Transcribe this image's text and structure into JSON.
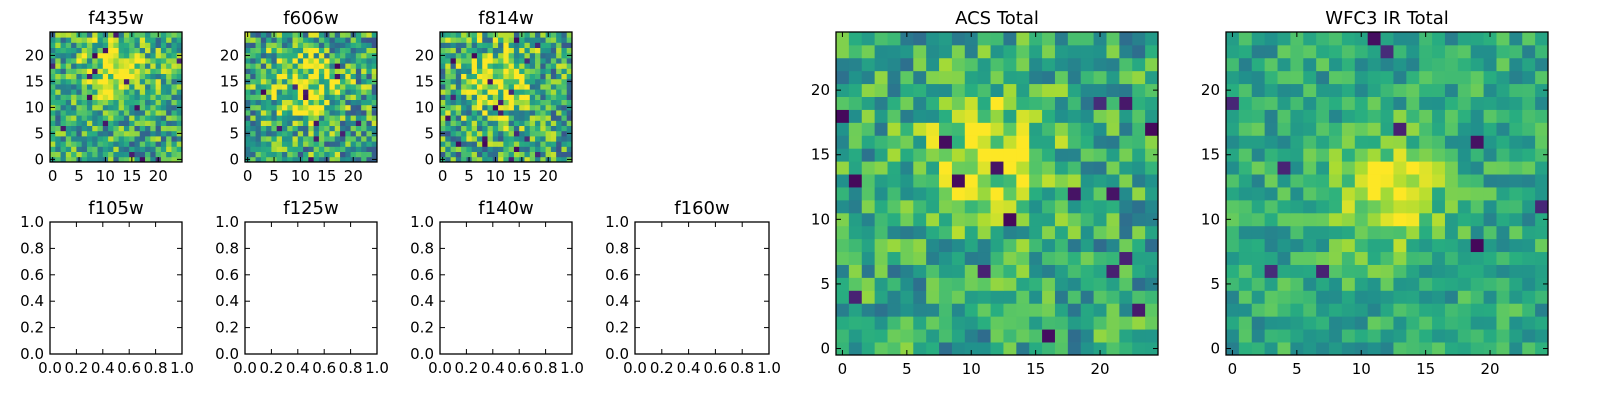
{
  "chart_data": [
    {
      "type": "heatmap",
      "title": "f435w",
      "x_ticks": [
        "0",
        "5",
        "10",
        "15",
        "20"
      ],
      "y_ticks": [
        "0",
        "5",
        "10",
        "15",
        "20"
      ],
      "xlim": [
        -0.5,
        24.5
      ],
      "ylim": [
        -0.5,
        24.5
      ],
      "grid_size": 25,
      "colormap": "viridis",
      "texture": "pixel noise, brighter blob near center-top",
      "seed": 435,
      "blob": [
        12,
        17,
        4.5
      ],
      "noise": 0.45
    },
    {
      "type": "heatmap",
      "title": "f606w",
      "x_ticks": [
        "0",
        "5",
        "10",
        "15",
        "20"
      ],
      "y_ticks": [
        "0",
        "5",
        "10",
        "15",
        "20"
      ],
      "xlim": [
        -0.5,
        24.5
      ],
      "ylim": [
        -0.5,
        24.5
      ],
      "grid_size": 25,
      "colormap": "viridis",
      "texture": "pixel noise, brighter blob near center",
      "seed": 606,
      "blob": [
        11,
        14,
        4.5
      ],
      "noise": 0.5
    },
    {
      "type": "heatmap",
      "title": "f814w",
      "x_ticks": [
        "0",
        "5",
        "10",
        "15",
        "20"
      ],
      "y_ticks": [
        "0",
        "5",
        "10",
        "15",
        "20"
      ],
      "xlim": [
        -0.5,
        24.5
      ],
      "ylim": [
        -0.5,
        24.5
      ],
      "grid_size": 25,
      "colormap": "viridis",
      "texture": "pixel noise, brighter blob near center",
      "seed": 814,
      "blob": [
        10,
        15,
        4.5
      ],
      "noise": 0.5
    },
    {
      "type": "empty",
      "title": "f105w",
      "x_ticks": [
        "0.0",
        "0.2",
        "0.4",
        "0.6",
        "0.8",
        "1.0"
      ],
      "y_ticks": [
        "0.0",
        "0.2",
        "0.4",
        "0.6",
        "0.8",
        "1.0"
      ],
      "xlim": [
        0,
        1
      ],
      "ylim": [
        0,
        1
      ]
    },
    {
      "type": "empty",
      "title": "f125w",
      "x_ticks": [
        "0.0",
        "0.2",
        "0.4",
        "0.6",
        "0.8",
        "1.0"
      ],
      "y_ticks": [
        "0.0",
        "0.2",
        "0.4",
        "0.6",
        "0.8",
        "1.0"
      ],
      "xlim": [
        0,
        1
      ],
      "ylim": [
        0,
        1
      ]
    },
    {
      "type": "empty",
      "title": "f140w",
      "x_ticks": [
        "0.0",
        "0.2",
        "0.4",
        "0.6",
        "0.8",
        "1.0"
      ],
      "y_ticks": [
        "0.0",
        "0.2",
        "0.4",
        "0.6",
        "0.8",
        "1.0"
      ],
      "xlim": [
        0,
        1
      ],
      "ylim": [
        0,
        1
      ]
    },
    {
      "type": "empty",
      "title": "f160w",
      "x_ticks": [
        "0.0",
        "0.2",
        "0.4",
        "0.6",
        "0.8",
        "1.0"
      ],
      "y_ticks": [
        "0.0",
        "0.2",
        "0.4",
        "0.6",
        "0.8",
        "1.0"
      ],
      "xlim": [
        0,
        1
      ],
      "ylim": [
        0,
        1
      ]
    },
    {
      "type": "heatmap",
      "title": "ACS Total",
      "x_ticks": [
        "0",
        "5",
        "10",
        "15",
        "20"
      ],
      "y_ticks": [
        "0",
        "5",
        "10",
        "15",
        "20"
      ],
      "xlim": [
        -0.5,
        24.5
      ],
      "ylim": [
        -0.5,
        24.5
      ],
      "grid_size": 25,
      "colormap": "viridis",
      "texture": "pixel noise, bright yellow source near (11,15)",
      "seed": 1001,
      "blob": [
        11,
        15,
        3.5
      ],
      "noise": 0.35
    },
    {
      "type": "heatmap",
      "title": "WFC3 IR Total",
      "x_ticks": [
        "0",
        "5",
        "10",
        "15",
        "20"
      ],
      "y_ticks": [
        "0",
        "5",
        "10",
        "15",
        "20"
      ],
      "xlim": [
        -0.5,
        24.5
      ],
      "ylim": [
        -0.5,
        24.5
      ],
      "grid_size": 25,
      "colormap": "viridis",
      "texture": "smoother noise, bright yellow source near (12,12)",
      "seed": 2002,
      "blob": [
        12,
        12,
        3.2
      ],
      "noise": 0.25
    }
  ]
}
